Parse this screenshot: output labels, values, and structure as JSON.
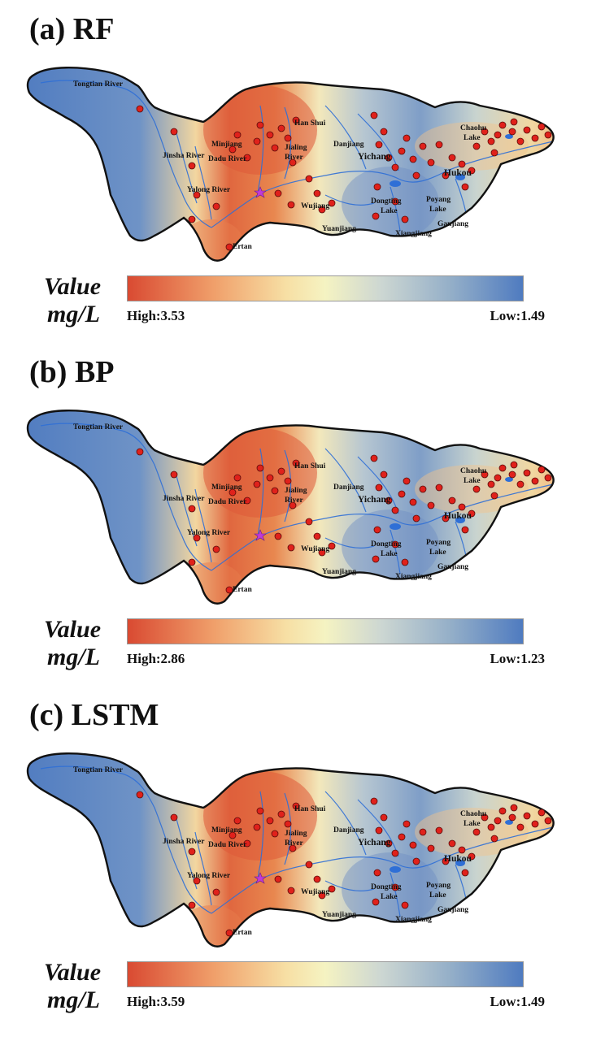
{
  "panels": [
    {
      "title": "(a) RF",
      "legend": {
        "value_label": "Value",
        "unit": "mg/L",
        "high": "High:3.53",
        "low": "Low:1.49"
      },
      "variant": "rf"
    },
    {
      "title": "(b) BP",
      "legend": {
        "value_label": "Value",
        "unit": "mg/L",
        "high": "High:2.86",
        "low": "Low:1.23"
      },
      "variant": "bp"
    },
    {
      "title": "(c) LSTM",
      "legend": {
        "value_label": "Value",
        "unit": "mg/L",
        "high": "High:3.59",
        "low": "Low:1.49"
      },
      "variant": "lstm"
    }
  ],
  "map_labels": {
    "tongtian": "Tongtian River",
    "jinsha": "Jinsha River",
    "dadu": "Dadu River",
    "minjiang": "Minjiang",
    "jialing_1": "Jialing",
    "jialing_2": "River",
    "han_shui": "Han Shui",
    "danjiang": "Danjiang",
    "yichang": "Yichang",
    "chaohu_1": "Chaohu",
    "chaohu_2": "Lake",
    "hukou": "Hukou",
    "yalong": "Yalong River",
    "wujiang": "Wujiang",
    "dongting_1": "Dongting",
    "dongting_2": "Lake",
    "poyang_1": "Poyang",
    "poyang_2": "Lake",
    "ganjiang": "Ganjiang",
    "yuanjiang": "Yuanjiang",
    "xiangjiang": "Xiangjiang",
    "ertan": "Ertan"
  },
  "colors": {
    "high": "#d94a32",
    "mid": "#f5f3c2",
    "low": "#4f7bc0",
    "site_marker": "#e0211b",
    "river": "#2f6fd6",
    "station_star": "#c03bd8"
  }
}
